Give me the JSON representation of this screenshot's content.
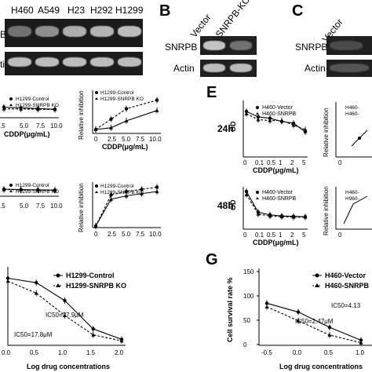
{
  "panels": {
    "B": "B",
    "C": "C",
    "E": "E",
    "G": "G"
  },
  "blot_a": {
    "lanes": [
      "H460",
      "A549",
      "H23",
      "H292",
      "H1299"
    ],
    "row_labels": [
      "B",
      "tin"
    ],
    "snrpb_intensity": [
      0.35,
      0.55,
      0.75,
      0.8,
      0.85
    ],
    "actin_intensity": [
      0.85,
      0.85,
      0.85,
      0.85,
      0.85
    ]
  },
  "blot_b": {
    "lanes": [
      "Vector",
      "SNRPB-KO"
    ],
    "row_labels": [
      "SNRPB",
      "Actin"
    ],
    "snrpb_intensity": [
      0.9,
      0.35
    ],
    "actin_intensity": [
      0.85,
      0.85
    ]
  },
  "blot_c": {
    "lanes": [
      "Vector"
    ],
    "row_labels": [
      "SNRPB",
      "Actin"
    ]
  },
  "panel_d": {
    "xlabel": "CDDP(μg/mL)",
    "ylabel_right": "Relative inhibition",
    "x_ticks_left": [
      ".5",
      "5.0",
      "7.5",
      "10.0"
    ],
    "x_ticks_right": [
      "0",
      "2.5",
      "5.0",
      "7.5",
      "10.0"
    ],
    "legend": [
      "H1299-Control",
      "H1299-SNRPB KO"
    ]
  },
  "panel_e": {
    "xlabel": "CDDP(μg/mL)",
    "ylabel": "OD",
    "ylabel_right": "Relative inhibition",
    "x_ticks": [
      "0",
      "0.1",
      "0.5",
      "1",
      "2",
      "5"
    ],
    "legend": [
      "H460-Vector",
      "H460-SNRPB"
    ],
    "legend_right_24h": [
      "H460-",
      "H460-"
    ],
    "legend_right_48h": [
      "H460-",
      "H960-"
    ],
    "rows": [
      "24h",
      "48h"
    ],
    "right_tick_fragments": [
      "0",
      "0"
    ]
  },
  "panel_f": {
    "xlabel": "Log drug concentrations",
    "x_ticks": [
      "0.0",
      "0.5",
      "1.0",
      "1.5",
      "2.0"
    ],
    "legend": [
      "H1299-Control",
      "H1299-SNRPB KO"
    ],
    "ic50_control": "IC50=27.9μM",
    "ic50_ko": "IC50=17.8μM"
  },
  "panel_g": {
    "ylabel": "Cell survival rate %",
    "xlabel": "Log drug concentrations",
    "x_ticks": [
      "-0.5",
      "0.0",
      "0.5",
      "1.0"
    ],
    "y_ticks": [
      "150",
      "100",
      "50",
      "0"
    ],
    "legend": [
      "H460-Vector",
      "H460-SNRPB"
    ],
    "ic50_vector": "IC50=4.13",
    "ic50_snrpb": "IC50=2.47μM"
  },
  "chart_data": [
    {
      "type": "line",
      "title": "",
      "xlabel": "CDDP(μg/mL)",
      "ylabel": "",
      "x": [
        2.5,
        5.0,
        7.5,
        10.0
      ],
      "series": [
        {
          "name": "H1299-Control",
          "values": [
            0.45,
            0.42,
            0.39,
            0.36
          ]
        },
        {
          "name": "H1299-SNRPB KO",
          "values": [
            0.38,
            0.37,
            0.36,
            0.35
          ]
        }
      ]
    },
    {
      "type": "line",
      "title": "",
      "xlabel": "CDDP(μg/mL)",
      "ylabel": "Relative inhibition",
      "x": [
        0,
        2.5,
        5.0,
        10.0
      ],
      "series": [
        {
          "name": "H1299-Control",
          "values": [
            0.0,
            0.12,
            0.24,
            0.34
          ]
        },
        {
          "name": "H1299-SNRPB KO",
          "values": [
            0.0,
            0.02,
            0.1,
            0.22
          ]
        }
      ]
    },
    {
      "type": "line",
      "title": "",
      "xlabel": "",
      "ylabel": "",
      "x": [
        2.5,
        5.0,
        7.5,
        10.0
      ],
      "series": [
        {
          "name": "H1299-Control",
          "values": [
            0.3,
            0.28,
            0.27,
            0.26
          ]
        },
        {
          "name": "H1299-SNRPB KO",
          "values": [
            0.28,
            0.27,
            0.26,
            0.25
          ]
        }
      ]
    },
    {
      "type": "line",
      "title": "",
      "xlabel": "",
      "ylabel": "Relative inhibition",
      "x": [
        0,
        2.5,
        5.0,
        7.5,
        10.0
      ],
      "series": [
        {
          "name": "H1299-Control",
          "values": [
            0.0,
            0.72,
            0.8,
            0.85,
            0.9
          ]
        },
        {
          "name": "H1299-SNRPB KO",
          "values": [
            0.0,
            0.62,
            0.7,
            0.75,
            0.8
          ]
        }
      ]
    },
    {
      "type": "line",
      "title": "",
      "xlabel": "CDDP(μg/mL)",
      "ylabel": "OD",
      "x_categories": [
        "0",
        "0.1",
        "0.5",
        "1",
        "2",
        "5"
      ],
      "series": [
        {
          "name": "H460-Vector",
          "values": [
            1.0,
            0.88,
            0.85,
            0.78,
            0.74,
            0.55
          ]
        },
        {
          "name": "H460-SNRPB",
          "values": [
            0.95,
            0.82,
            0.8,
            0.8,
            0.7,
            0.6
          ]
        }
      ]
    },
    {
      "type": "line",
      "title": "",
      "xlabel": "CDDP(μg/mL)",
      "ylabel": "OD",
      "x_categories": [
        "0",
        "0.1",
        "0.5",
        "1",
        "2",
        "5"
      ],
      "series": [
        {
          "name": "H460-Vector",
          "values": [
            1.0,
            0.45,
            0.38,
            0.35,
            0.34,
            0.33
          ]
        },
        {
          "name": "H460-SNRPB",
          "values": [
            0.92,
            0.4,
            0.35,
            0.33,
            0.32,
            0.32
          ]
        }
      ]
    },
    {
      "type": "line",
      "title": "",
      "xlabel": "Log drug concentrations",
      "ylabel": "",
      "x": [
        0.0,
        0.5,
        1.0,
        1.5,
        2.0
      ],
      "xlim": [
        0.0,
        2.0
      ],
      "series": [
        {
          "name": "H1299-Control",
          "values": [
            90,
            84,
            60,
            22,
            8
          ]
        },
        {
          "name": "H1299-SNRPB KO",
          "values": [
            86,
            70,
            40,
            14,
            6
          ]
        }
      ]
    },
    {
      "type": "line",
      "title": "",
      "xlabel": "Log drug concentrations",
      "ylabel": "Cell survival rate %",
      "x": [
        -0.5,
        0.0,
        0.5,
        1.0
      ],
      "ylim": [
        0,
        150
      ],
      "series": [
        {
          "name": "H460-Vector",
          "values": [
            82,
            65,
            35,
            10
          ]
        },
        {
          "name": "H460-SNRPB",
          "values": [
            75,
            48,
            20,
            5
          ]
        }
      ]
    }
  ]
}
